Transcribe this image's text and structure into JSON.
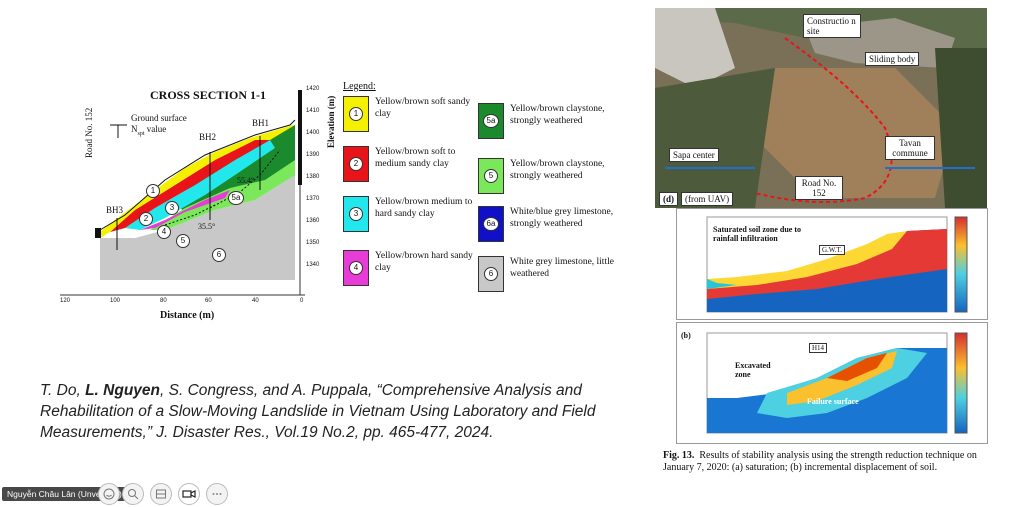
{
  "cross_section": {
    "title": "CROSS SECTION 1-1",
    "xlabel": "Distance (m)",
    "ylabel": "Elevation (m)",
    "road_label": "Road No. 152",
    "ground_surface": "Ground surface",
    "nspt": "N",
    "nspt_sub": "spt",
    "nspt_value": " value",
    "boreholes": [
      "BH1",
      "BH2",
      "BH3"
    ],
    "angles": [
      "55.4°",
      "35.5°",
      "35.5°"
    ],
    "x_ticks": [
      "120",
      "100",
      "80",
      "60",
      "40",
      "20",
      "0"
    ],
    "y_ticks": [
      "1420",
      "1410",
      "1400",
      "1390",
      "1380",
      "1370",
      "1360",
      "1350",
      "1340"
    ],
    "layer_ids": [
      "1",
      "2",
      "3",
      "4",
      "5",
      "5a",
      "6"
    ]
  },
  "legend": {
    "title": "Legend:",
    "items": [
      {
        "id": "1",
        "text": "Yellow/brown soft sandy clay",
        "color": "#f4f000"
      },
      {
        "id": "2",
        "text": "Yellow/brown soft to medium sandy clay",
        "color": "#e8141a"
      },
      {
        "id": "3",
        "text": "Yellow/brown medium to hard sandy clay",
        "color": "#22e8ee"
      },
      {
        "id": "4",
        "text": "Yellow/brown hard sandy clay",
        "color": "#e83cd8"
      },
      {
        "id": "5a",
        "text": "Yellow/brown claystone, strongly weathered",
        "color": "#1a8a2c"
      },
      {
        "id": "5",
        "text": "Yellow/brown claystone, strongly weathered",
        "color": "#7ae85a"
      },
      {
        "id": "6a",
        "text": "White/blue grey limestone, strongly weathered",
        "color": "#1010c8"
      },
      {
        "id": "6",
        "text": "White grey limestone, little weathered",
        "color": "#c8c8c8"
      }
    ]
  },
  "citation": {
    "authors_pre": "T. Do, ",
    "author_bold": "L. Nguyen",
    "rest": ", S. Congress, and A. Puppala, “Comprehensive Analysis and Rehabilitation of a Slow-Moving Landslide in Vietnam Using Laboratory and Field Measurements,” J. Disaster Res., Vol.19 No.2, pp. 465-477, 2024."
  },
  "photo": {
    "construction": "Constructio n site",
    "sliding": "Sliding body",
    "sapa": "Sapa center",
    "tavan": "Tavan commune",
    "road": "Road No. 152",
    "panel": "(d)",
    "source": "(from UAV)"
  },
  "sim": {
    "a_label1": "Saturated soil zone due to rainfall infiltration",
    "a_gwt": "G.W.T.",
    "b_label": "(b)",
    "b_h14": "H14",
    "b_excavated": "Excavated zone",
    "b_failure": "Failure surface"
  },
  "figure_caption": {
    "label": "Fig. 13.",
    "text": "Results of stability analysis using the strength reduction technique on January 7, 2020: (a) saturation; (b) incremental displacement of soil."
  },
  "meeting": {
    "user_name": "Nguyễn Châu Lân (Unverified)"
  }
}
